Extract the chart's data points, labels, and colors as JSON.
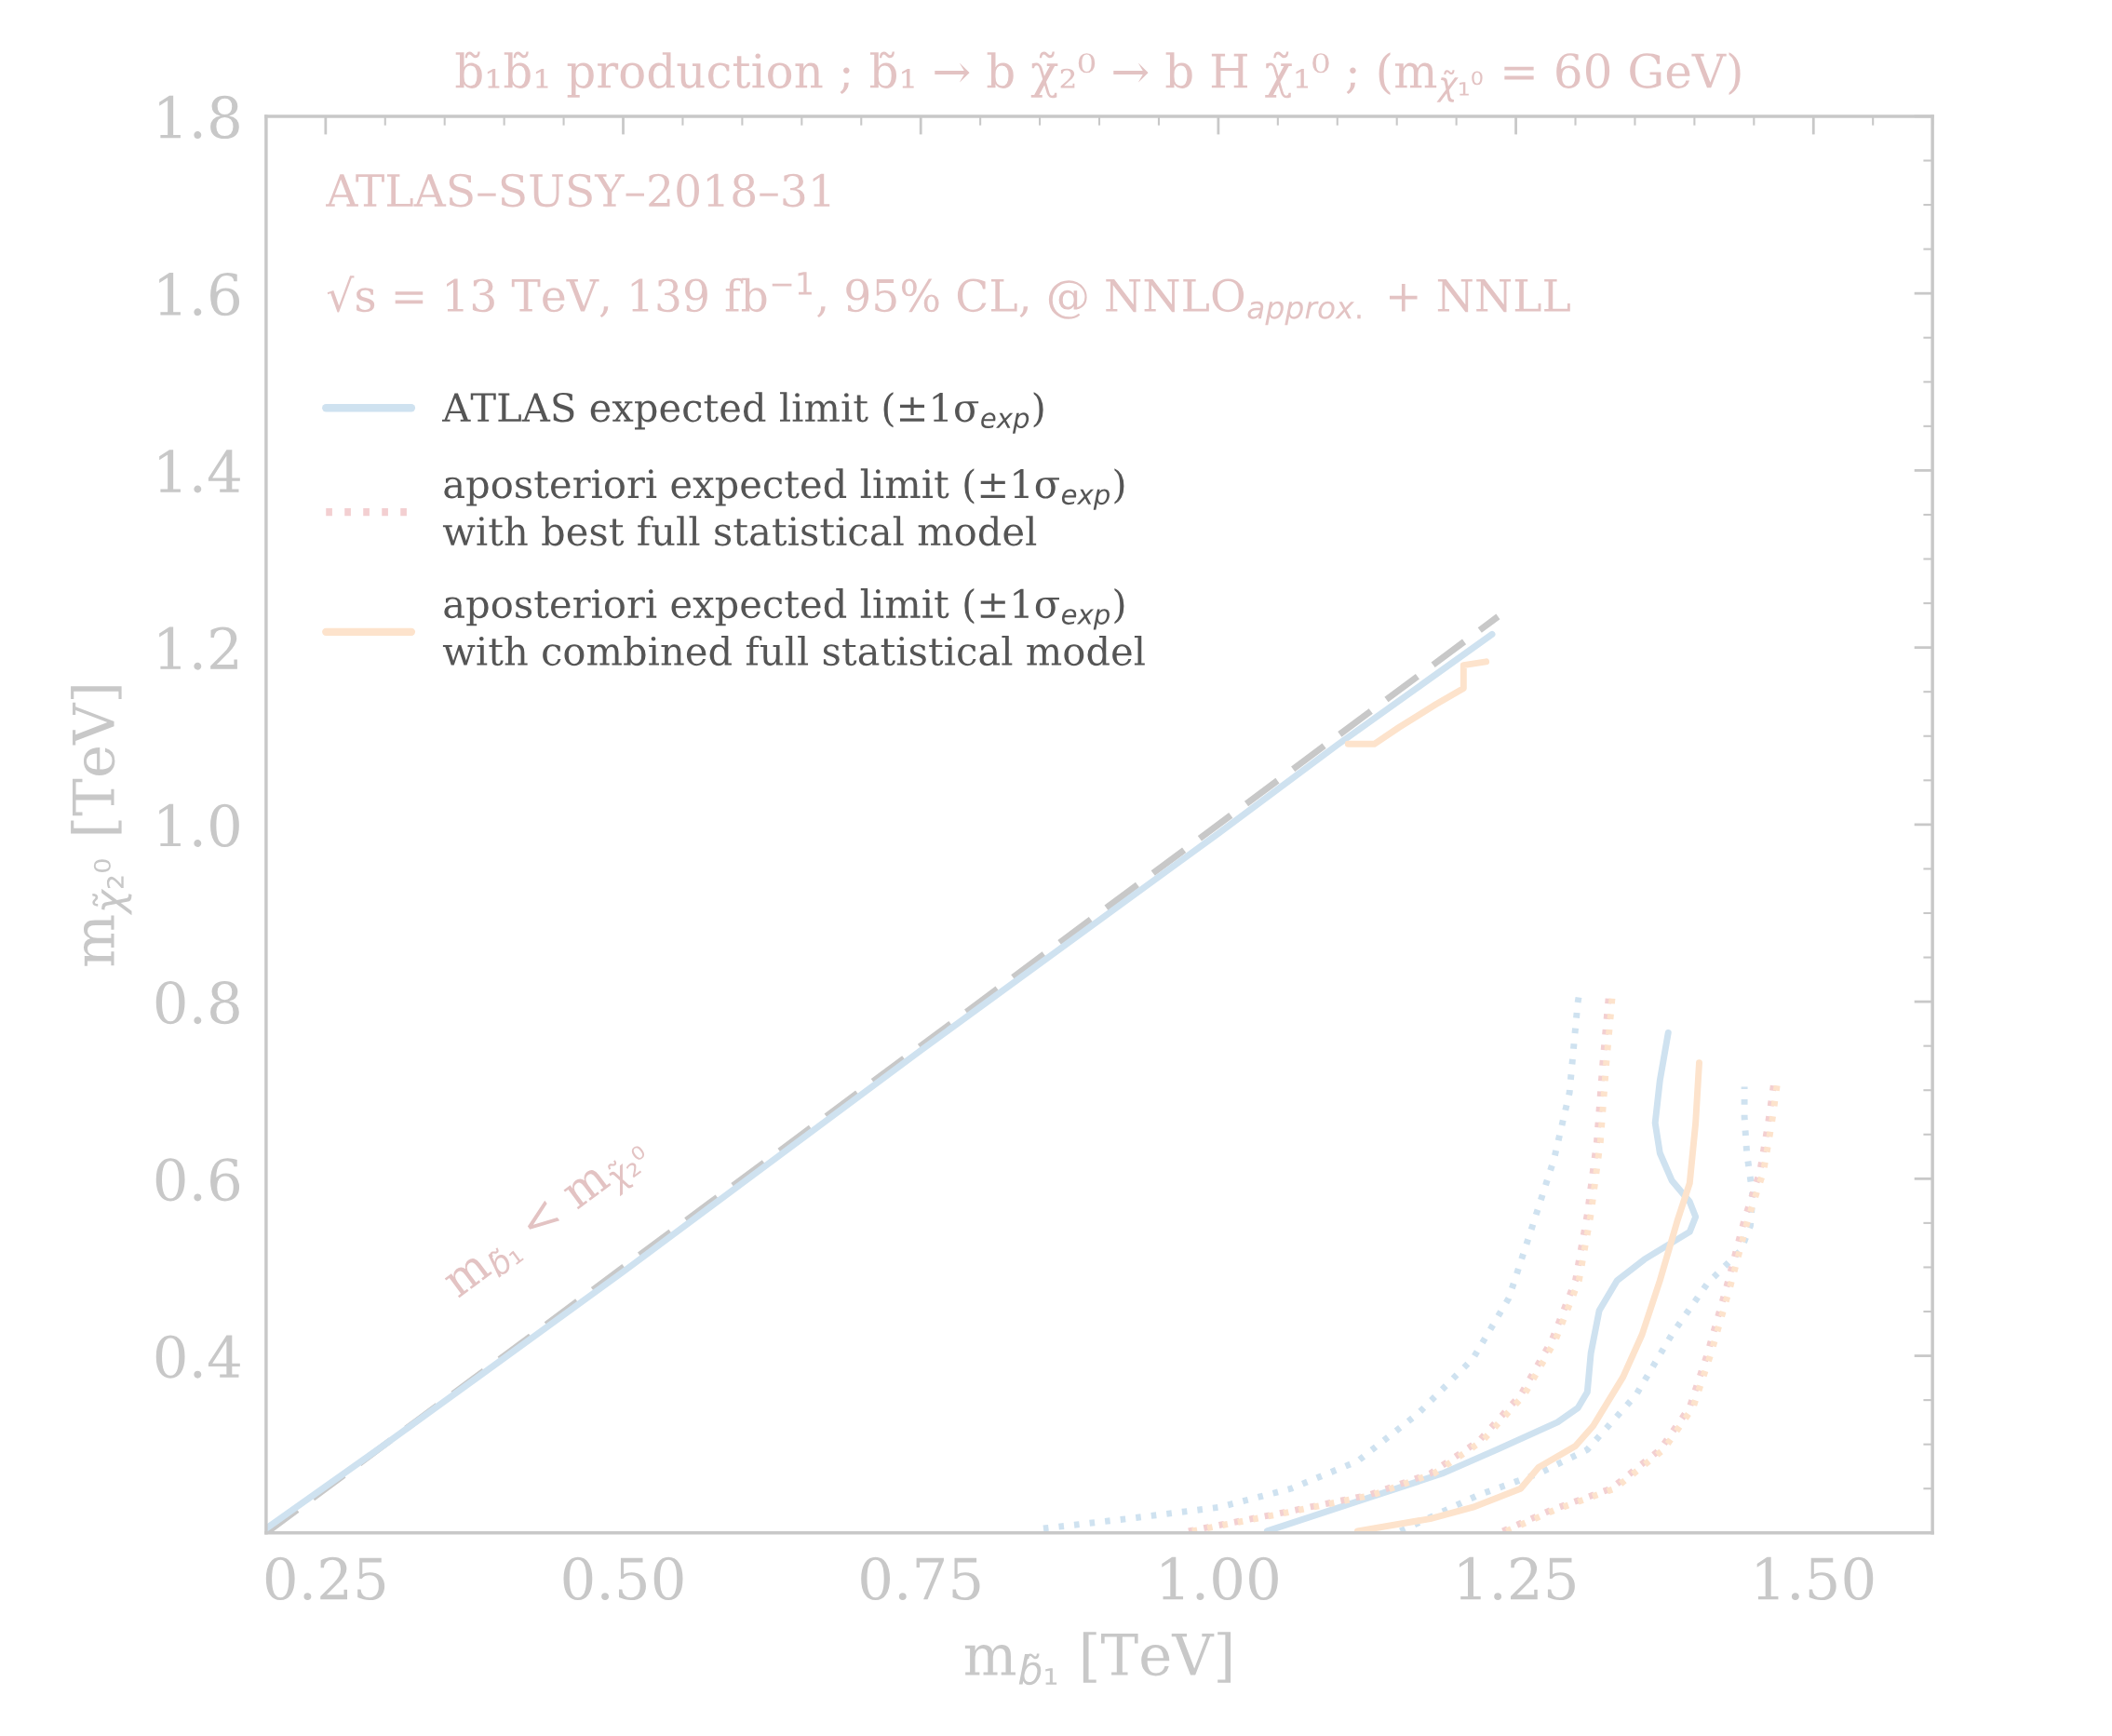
{
  "chart_data": {
    "type": "line",
    "title": "b̃₁b̃₁ production ; b̃₁ → b χ̃₂⁰ → b H χ̃₁⁰ ; (m$_{χ̃₁⁰}$ = 60 GeV)",
    "xlabel": "m$_{b̃₁}$ [TeV]",
    "ylabel": "m$_{χ̃₂⁰}$ [TeV]",
    "annotations": [
      "ATLAS–SUSY–2018–31",
      "√s = 13 TeV, 139 fb$^{−1}$, 95% CL, @ NNLO$_{approx.}$ + NNLL",
      "m$_{b̃₁}$ < m$_{χ̃₂⁰}$"
    ],
    "xlim": [
      0.2,
      1.6
    ],
    "ylim": [
      0.2,
      1.8
    ],
    "xticks": [
      0.25,
      {
        "value": 0.5,
        "label": "0.50"
      },
      0.75,
      {
        "value": 1,
        "label": "1.00"
      },
      1.25,
      {
        "value": 1.5,
        "label": "1.50"
      }
    ],
    "yticks": [
      0.4,
      0.6,
      0.8,
      {
        "value": 1,
        "label": "1.0"
      },
      1.2,
      1.4,
      1.6,
      1.8
    ],
    "grid": false,
    "legend": "top left",
    "marker": "none",
    "series": [
      {
        "color": "#c8c8c8",
        "line_style": "dashed",
        "x": [
          0.2,
          1.235
        ],
        "values": [
          0.2,
          1.235
        ]
      },
      {
        "name": "ATLAS expected limit (±1σ$_{exp}$)",
        "color": "#cfe2f0",
        "line_style": "solid",
        "x": [
          0.2,
          0.3,
          0.5,
          0.75,
          1.0,
          1.1,
          1.23,
          1.3,
          1.378,
          1.371,
          1.367,
          1.371,
          1.381,
          1.396,
          1.401,
          1.396,
          1.358,
          1.335,
          1.32,
          1.313,
          1.31,
          1.302,
          1.285,
          1.234,
          1.188,
          1.127,
          1.041
        ],
        "values": [
          0.205,
          0.3,
          0.495,
          0.745,
          0.99,
          1.09,
          1.215,
          null,
          0.765,
          0.711,
          0.663,
          0.629,
          0.598,
          0.574,
          0.557,
          0.54,
          0.509,
          0.485,
          0.451,
          0.403,
          0.359,
          0.341,
          0.325,
          0.294,
          0.267,
          0.24,
          0.202
        ]
      },
      {
        "color": "#cfe2f0",
        "line_style": "dotted",
        "x": [
          0.853,
          0.924,
          1.001,
          1.061,
          1.117,
          1.168,
          1.214,
          1.244,
          1.264,
          1.282,
          1.295,
          1.302,
          1.303
        ],
        "values": [
          0.205,
          0.216,
          0.229,
          0.25,
          0.281,
          0.335,
          0.397,
          0.465,
          0.547,
          0.622,
          0.697,
          0.799,
          0.807
        ]
      },
      {
        "color": "#cfe2f0",
        "line_style": "dotted",
        "x": [
          1.153,
          1.219,
          1.269,
          1.31,
          1.351,
          1.381,
          1.411,
          1.439,
          1.447,
          1.449,
          1.444,
          1.442,
          1.442
        ],
        "values": [
          0.202,
          0.243,
          0.267,
          0.294,
          0.356,
          0.424,
          0.482,
          0.519,
          0.547,
          0.581,
          0.629,
          0.67,
          0.704
        ]
      },
      {
        "name": "aposteriori expected limit (±1σ$_{exp}$)\nwith best full statistical model",
        "color": "#f3cfd1",
        "line_style": "dotted",
        "x": [
          0.975,
          1.051,
          1.127,
          1.178,
          1.219,
          1.254,
          1.28,
          1.3,
          1.31,
          1.318,
          1.323,
          1.328
        ],
        "values": [
          0.202,
          0.222,
          0.243,
          0.267,
          0.304,
          0.356,
          0.417,
          0.485,
          0.56,
          0.642,
          0.731,
          0.806
        ]
      },
      {
        "color": "#f3cfd1",
        "line_style": "dotted",
        "x": [
          1.239,
          1.28,
          1.33,
          1.371,
          1.396,
          1.411,
          1.427,
          1.442,
          1.455,
          1.462,
          1.467
        ],
        "values": [
          0.202,
          0.226,
          0.25,
          0.294,
          0.342,
          0.403,
          0.478,
          0.554,
          0.608,
          0.663,
          0.711
        ]
      },
      {
        "name": "aposteriori expected limit (±1σ$_{exp}$)\nwith combined full statistical model",
        "color": "#fde3cc",
        "line_style": "solid",
        "x": [
          1.109,
          1.131,
          1.152,
          1.183,
          1.206,
          1.206,
          1.225,
          1.3,
          1.404,
          1.401,
          1.396,
          1.386,
          1.371,
          1.356,
          1.34,
          1.315,
          1.3,
          1.269,
          1.254,
          1.214,
          1.178,
          1.117
        ],
        "values": [
          1.091,
          1.091,
          1.11,
          1.136,
          1.154,
          1.18,
          1.184,
          null,
          0.731,
          0.663,
          0.595,
          0.554,
          0.485,
          0.424,
          0.376,
          0.321,
          0.298,
          0.274,
          0.25,
          0.229,
          0.216,
          0.202
        ]
      },
      {
        "color": "#fde3cc",
        "line_style": "dotted",
        "x": [
          0.978,
          1.054,
          1.13,
          1.181,
          1.222,
          1.257,
          1.283,
          1.303,
          1.313,
          1.321,
          1.326,
          1.331
        ],
        "values": [
          0.202,
          0.222,
          0.243,
          0.267,
          0.304,
          0.356,
          0.417,
          0.485,
          0.56,
          0.642,
          0.731,
          0.806
        ]
      },
      {
        "color": "#fde3cc",
        "line_style": "dotted",
        "x": [
          1.242,
          1.283,
          1.333,
          1.374,
          1.399,
          1.414,
          1.43,
          1.445,
          1.458,
          1.465,
          1.47
        ],
        "values": [
          0.202,
          0.226,
          0.25,
          0.294,
          0.342,
          0.403,
          0.478,
          0.554,
          0.608,
          0.663,
          0.711
        ]
      }
    ]
  }
}
